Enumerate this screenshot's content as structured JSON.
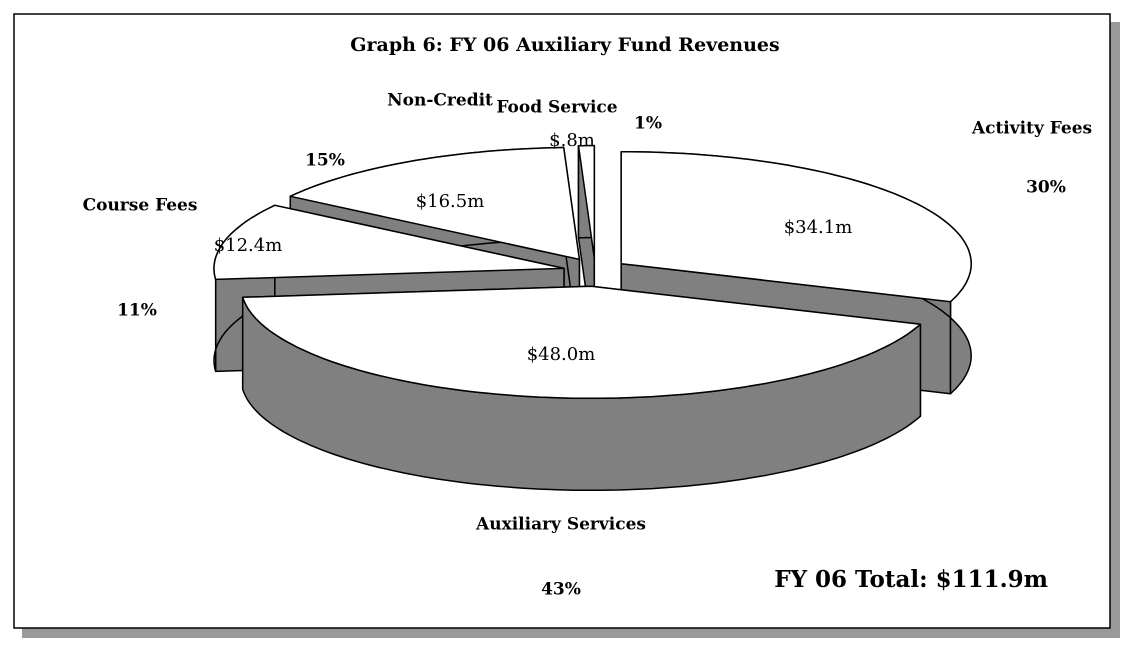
{
  "chart_data": {
    "type": "pie",
    "title": "Graph 6: FY 06 Auxiliary Fund Revenues",
    "categories": [
      "Activity Fees",
      "Auxiliary Services",
      "Course Fees",
      "Non-Credit",
      "Food Service"
    ],
    "values": [
      34.1,
      48.0,
      12.4,
      16.5,
      0.8
    ],
    "value_labels": [
      "$34.1m",
      "$48.0m",
      "$12.4m",
      "$16.5m",
      "$.8m"
    ],
    "percents": [
      30,
      43,
      11,
      15,
      1
    ],
    "percent_labels": [
      "30%",
      "43%",
      "11%",
      "15%",
      "1%"
    ],
    "top_color": "#ffffff",
    "side_color": "#808080",
    "annotation": "FY 06 Total: $111.9m"
  }
}
